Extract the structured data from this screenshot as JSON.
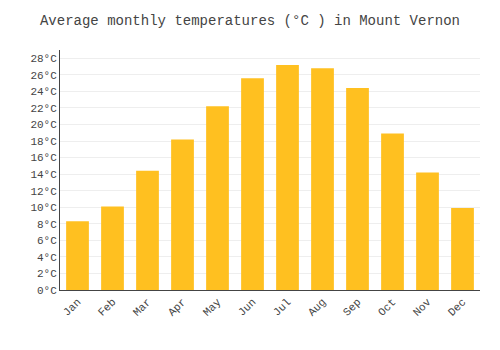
{
  "chart_data": {
    "type": "bar",
    "title": "Average monthly temperatures (°C ) in Mount Vernon",
    "categories": [
      "Jan",
      "Feb",
      "Mar",
      "Apr",
      "May",
      "Jun",
      "Jul",
      "Aug",
      "Sep",
      "Oct",
      "Nov",
      "Dec"
    ],
    "values": [
      8.3,
      10.1,
      14.4,
      18.2,
      22.2,
      25.6,
      27.2,
      26.8,
      24.4,
      18.9,
      14.2,
      9.9
    ],
    "color": "#FFC020",
    "ylim": [
      0,
      29
    ],
    "yticks": [
      {
        "value": 0,
        "label": "0°C"
      },
      {
        "value": 2,
        "label": "2°C"
      },
      {
        "value": 4,
        "label": "4°C"
      },
      {
        "value": 6,
        "label": "6°C"
      },
      {
        "value": 8,
        "label": "8°C"
      },
      {
        "value": 10,
        "label": "10°C"
      },
      {
        "value": 12,
        "label": "12°C"
      },
      {
        "value": 14,
        "label": "14°C"
      },
      {
        "value": 16,
        "label": "16°C"
      },
      {
        "value": 18,
        "label": "18°C"
      },
      {
        "value": 20,
        "label": "20°C"
      },
      {
        "value": 22,
        "label": "22°C"
      },
      {
        "value": 24,
        "label": "24°C"
      },
      {
        "value": 26,
        "label": "26°C"
      },
      {
        "value": 28,
        "label": "28°C"
      }
    ],
    "grid": true
  }
}
